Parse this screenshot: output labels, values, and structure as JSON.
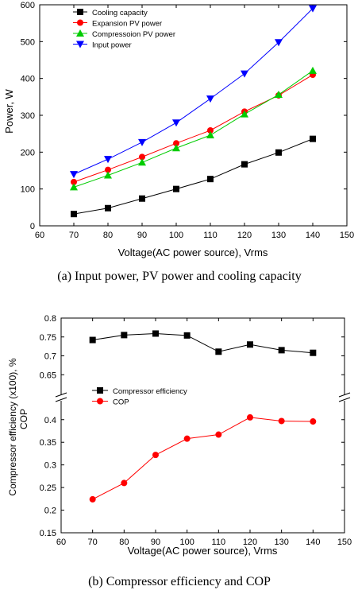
{
  "chart_data": [
    {
      "type": "line",
      "caption": "(a)  Input power, PV power and cooling capacity",
      "xlabel": "Voltage(AC power source), Vrms",
      "ylabel": "Power, W",
      "xlim": [
        60,
        150
      ],
      "ylim": [
        0,
        600
      ],
      "x_ticks": [
        60,
        70,
        80,
        90,
        100,
        110,
        120,
        130,
        140,
        150
      ],
      "y_ticks": [
        0,
        100,
        200,
        300,
        400,
        500,
        600
      ],
      "x": [
        70,
        80,
        90,
        100,
        110,
        120,
        130,
        140
      ],
      "legend_position": "top-left",
      "series": [
        {
          "name": "Cooling capacity",
          "color": "#000000",
          "marker": "square",
          "values": [
            32,
            48,
            74,
            100,
            127,
            167,
            199,
            236
          ]
        },
        {
          "name": "Expansion PV power",
          "color": "#ff0000",
          "marker": "circle",
          "values": [
            119,
            152,
            187,
            224,
            259,
            310,
            354,
            410
          ]
        },
        {
          "name": "Compressoion PV power",
          "color": "#00cc00",
          "marker": "triangle-up",
          "values": [
            105,
            137,
            172,
            211,
            246,
            303,
            356,
            421
          ]
        },
        {
          "name": "Input power",
          "color": "#0000ff",
          "marker": "triangle-down",
          "values": [
            140,
            181,
            227,
            280,
            345,
            413,
            498,
            590
          ]
        }
      ]
    },
    {
      "type": "line",
      "caption": "(b)  Compressor efficiency  and  COP",
      "xlabel": "Voltage(AC power source), Vrms",
      "ylabel_top": "Compressor efficiency (x100), %",
      "ylabel_bottom": "COP",
      "xlim": [
        60,
        150
      ],
      "x_ticks": [
        60,
        70,
        80,
        90,
        100,
        110,
        120,
        130,
        140,
        150
      ],
      "broken_axis": true,
      "upper_ylim": [
        0.6,
        0.8
      ],
      "upper_y_ticks": [
        "0.65",
        "0.7",
        "0.75",
        "0.8"
      ],
      "lower_ylim": [
        0.15,
        0.44
      ],
      "lower_y_ticks": [
        "0.15",
        "0.2",
        "0.25",
        "0.3",
        "0.35",
        "0.4"
      ],
      "x": [
        70,
        80,
        90,
        100,
        110,
        120,
        130,
        140
      ],
      "legend_position": "middle-left",
      "series": [
        {
          "name": "Compressor efficiency",
          "color": "#000000",
          "marker": "square",
          "axis": "upper",
          "values": [
            0.742,
            0.755,
            0.759,
            0.754,
            0.711,
            0.73,
            0.715,
            0.708
          ]
        },
        {
          "name": "COP",
          "color": "#ff0000",
          "marker": "circle",
          "axis": "lower",
          "values": [
            0.224,
            0.26,
            0.322,
            0.358,
            0.367,
            0.405,
            0.397,
            0.396
          ]
        }
      ]
    }
  ]
}
